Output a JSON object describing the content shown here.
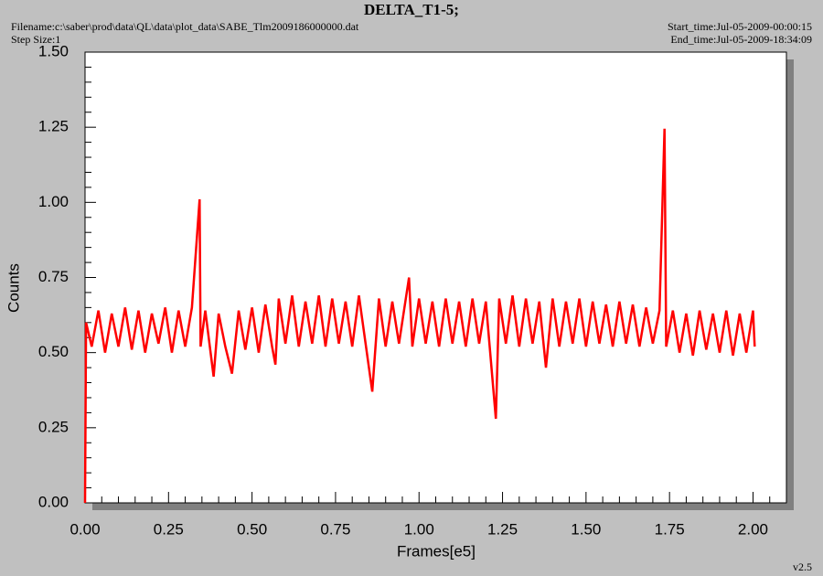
{
  "chart_data": {
    "type": "line",
    "title": "DELTA_T1-5;",
    "filename": "Filename:c:\\saber\\prod\\data\\QL\\data\\plot_data\\SABE_Tlm2009186000000.dat",
    "step_size": "Step Size:1",
    "start_time": "Start_time:Jul-05-2009-00:00:15",
    "end_time": "End_time:Jul-05-2009-18:34:09",
    "version": "v2.5",
    "xlabel": "Frames[e5]",
    "ylabel": "Counts",
    "xlim": [
      0,
      2.1
    ],
    "ylim": [
      0,
      1.5
    ],
    "xticks": [
      {
        "value": 0,
        "label": "0.00"
      },
      {
        "value": 0.25,
        "label": "0.25"
      },
      {
        "value": 0.5,
        "label": "0.50"
      },
      {
        "value": 0.75,
        "label": "0.75"
      },
      {
        "value": 1,
        "label": "1.00"
      },
      {
        "value": 1.25,
        "label": "1.25"
      },
      {
        "value": 1.5,
        "label": "1.50"
      },
      {
        "value": 1.75,
        "label": "1.75"
      },
      {
        "value": 2,
        "label": "2.00"
      }
    ],
    "yticks": [
      {
        "value": 0,
        "label": "0.00"
      },
      {
        "value": 0.25,
        "label": "0.25"
      },
      {
        "value": 0.5,
        "label": "0.50"
      },
      {
        "value": 0.75,
        "label": "0.75"
      },
      {
        "value": 1,
        "label": "1.00"
      },
      {
        "value": 1.25,
        "label": "1.25"
      },
      {
        "value": 1.5,
        "label": "1.50"
      }
    ],
    "xminorticks": [
      0.05,
      0.1,
      0.15,
      0.2,
      0.3,
      0.35,
      0.4,
      0.45,
      0.55,
      0.6,
      0.65,
      0.7,
      0.8,
      0.85,
      0.9,
      0.95,
      1.05,
      1.1,
      1.15,
      1.2,
      1.3,
      1.35,
      1.4,
      1.45,
      1.55,
      1.6,
      1.65,
      1.7,
      1.8,
      1.85,
      1.9,
      1.95,
      2.05
    ],
    "yminorticks": [
      0.05,
      0.1,
      0.15,
      0.2,
      0.3,
      0.35,
      0.4,
      0.45,
      0.55,
      0.6,
      0.65,
      0.7,
      0.8,
      0.85,
      0.9,
      0.95,
      1.05,
      1.1,
      1.15,
      1.2,
      1.3,
      1.35,
      1.4,
      1.45
    ],
    "x": [
      0,
      0.003,
      0.02,
      0.04,
      0.06,
      0.08,
      0.1,
      0.12,
      0.14,
      0.16,
      0.18,
      0.2,
      0.22,
      0.24,
      0.26,
      0.28,
      0.3,
      0.32,
      0.343,
      0.346,
      0.36,
      0.385,
      0.4,
      0.42,
      0.44,
      0.46,
      0.48,
      0.5,
      0.52,
      0.54,
      0.56,
      0.57,
      0.58,
      0.6,
      0.62,
      0.64,
      0.66,
      0.68,
      0.7,
      0.72,
      0.74,
      0.76,
      0.78,
      0.8,
      0.82,
      0.84,
      0.86,
      0.88,
      0.9,
      0.92,
      0.94,
      0.97,
      0.98,
      1.0,
      1.02,
      1.04,
      1.06,
      1.08,
      1.1,
      1.12,
      1.14,
      1.16,
      1.18,
      1.2,
      1.23,
      1.24,
      1.26,
      1.28,
      1.3,
      1.32,
      1.34,
      1.36,
      1.38,
      1.4,
      1.42,
      1.44,
      1.46,
      1.48,
      1.5,
      1.52,
      1.54,
      1.56,
      1.58,
      1.6,
      1.62,
      1.64,
      1.66,
      1.68,
      1.7,
      1.72,
      1.735,
      1.74,
      1.76,
      1.78,
      1.8,
      1.82,
      1.84,
      1.86,
      1.88,
      1.9,
      1.92,
      1.94,
      1.96,
      1.98,
      2.0,
      2.005
    ],
    "series": [
      {
        "color": "#ff0000",
        "values": [
          0,
          0.6,
          0.52,
          0.64,
          0.5,
          0.63,
          0.52,
          0.65,
          0.51,
          0.64,
          0.5,
          0.63,
          0.53,
          0.65,
          0.5,
          0.64,
          0.52,
          0.65,
          1.01,
          0.52,
          0.64,
          0.42,
          0.63,
          0.52,
          0.43,
          0.64,
          0.51,
          0.65,
          0.5,
          0.66,
          0.52,
          0.46,
          0.68,
          0.53,
          0.69,
          0.52,
          0.67,
          0.53,
          0.69,
          0.52,
          0.68,
          0.53,
          0.67,
          0.52,
          0.69,
          0.53,
          0.37,
          0.68,
          0.52,
          0.67,
          0.53,
          0.75,
          0.52,
          0.68,
          0.53,
          0.67,
          0.52,
          0.68,
          0.53,
          0.67,
          0.52,
          0.68,
          0.53,
          0.67,
          0.28,
          0.68,
          0.53,
          0.69,
          0.52,
          0.68,
          0.53,
          0.67,
          0.45,
          0.68,
          0.52,
          0.67,
          0.53,
          0.68,
          0.52,
          0.67,
          0.53,
          0.66,
          0.52,
          0.67,
          0.53,
          0.66,
          0.52,
          0.65,
          0.53,
          0.64,
          1.245,
          0.52,
          0.64,
          0.5,
          0.63,
          0.49,
          0.64,
          0.51,
          0.63,
          0.5,
          0.64,
          0.49,
          0.63,
          0.5,
          0.64,
          0.52
        ]
      }
    ]
  }
}
